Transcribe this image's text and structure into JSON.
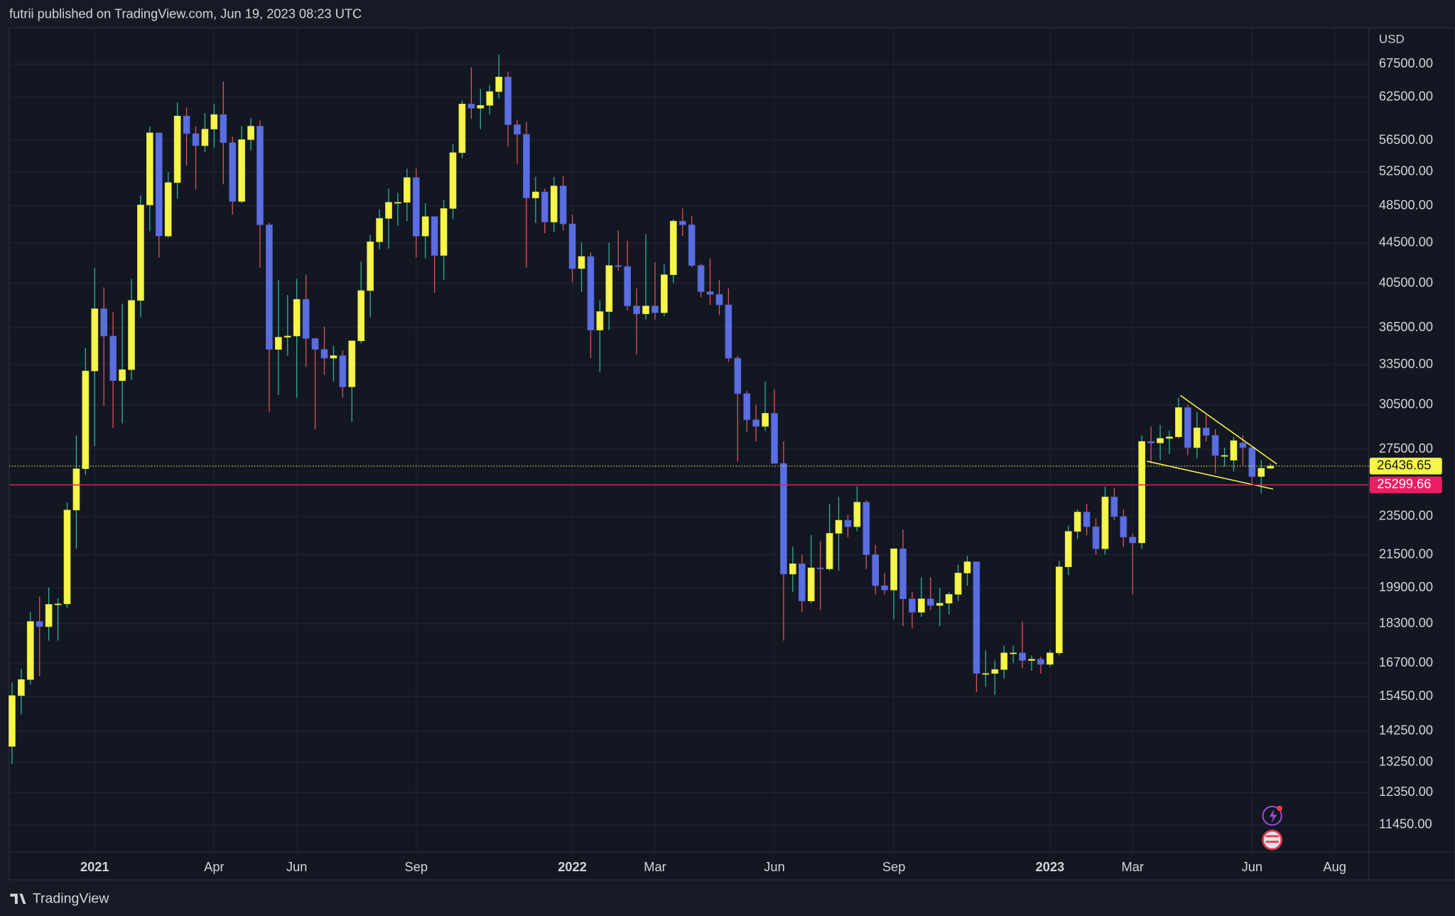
{
  "header": "futrii published on TradingView.com, Jun 19, 2023 08:23 UTC",
  "footer": "TradingView",
  "chart_data": {
    "type": "candlestick",
    "currency": "USD",
    "log_scale": true,
    "grid": true,
    "up_color": "#f5f54a",
    "down_color": "#5a6ee0",
    "up_wick_color": "#2bb394",
    "down_wick_color": "#e0505a",
    "last_price": 26436.65,
    "last_price_color": "#f5f54a",
    "level": 25299.66,
    "level_color": "#e91e63",
    "xlim": [
      -0.3,
      147.7
    ],
    "ylim": [
      10750,
      73450
    ],
    "xticks": [
      {
        "value": 9,
        "label": "2021"
      },
      {
        "value": 22,
        "label": "Apr"
      },
      {
        "value": 31,
        "label": "Jun"
      },
      {
        "value": 44,
        "label": "Sep"
      },
      {
        "value": 61,
        "label": "2022"
      },
      {
        "value": 70,
        "label": "Mar"
      },
      {
        "value": 83,
        "label": "Jun"
      },
      {
        "value": 96,
        "label": "Sep"
      },
      {
        "value": 113,
        "label": "2023"
      },
      {
        "value": 122,
        "label": "Mar"
      },
      {
        "value": 135,
        "label": "Jun"
      },
      {
        "value": 144,
        "label": "Aug"
      }
    ],
    "yticks": [
      {
        "value": 67500,
        "label": "67500.00"
      },
      {
        "value": 62500,
        "label": "62500.00"
      },
      {
        "value": 56500,
        "label": "56500.00"
      },
      {
        "value": 52500,
        "label": "52500.00"
      },
      {
        "value": 48500,
        "label": "48500.00"
      },
      {
        "value": 44500,
        "label": "44500.00"
      },
      {
        "value": 40500,
        "label": "40500.00"
      },
      {
        "value": 36500,
        "label": "36500.00"
      },
      {
        "value": 33500,
        "label": "33500.00"
      },
      {
        "value": 30500,
        "label": "30500.00"
      },
      {
        "value": 27500,
        "label": "27500.00"
      },
      {
        "value": 23500,
        "label": "23500.00"
      },
      {
        "value": 21500,
        "label": "21500.00"
      },
      {
        "value": 19900,
        "label": "19900.00"
      },
      {
        "value": 18300,
        "label": "18300.00"
      },
      {
        "value": 16700,
        "label": "16700.00"
      },
      {
        "value": 15450,
        "label": "15450.00"
      },
      {
        "value": 14250,
        "label": "14250.00"
      },
      {
        "value": 13250,
        "label": "13250.00"
      },
      {
        "value": 12350,
        "label": "12350.00"
      },
      {
        "value": 11450,
        "label": "11450.00"
      }
    ],
    "ohlc": [
      [
        13750,
        15960,
        13200,
        15480
      ],
      [
        15480,
        16480,
        14820,
        16070
      ],
      [
        16070,
        18800,
        15880,
        18400
      ],
      [
        18400,
        19500,
        16200,
        18180
      ],
      [
        18180,
        19920,
        17600,
        19150
      ],
      [
        19150,
        19420,
        17600,
        19170
      ],
      [
        19170,
        24280,
        19000,
        23860
      ],
      [
        23860,
        28400,
        21800,
        26270
      ],
      [
        26270,
        34800,
        25900,
        33000
      ],
      [
        33000,
        41950,
        27700,
        38150
      ],
      [
        38150,
        40100,
        30400,
        35800
      ],
      [
        35800,
        37860,
        28900,
        32260
      ],
      [
        32260,
        38600,
        29200,
        33100
      ],
      [
        33100,
        40900,
        32300,
        38900
      ],
      [
        38900,
        49700,
        37400,
        48600
      ],
      [
        48600,
        58350,
        45700,
        57500
      ],
      [
        57500,
        57500,
        43000,
        45200
      ],
      [
        45200,
        52500,
        45000,
        51200
      ],
      [
        51200,
        61700,
        49300,
        59800
      ],
      [
        59800,
        61000,
        53300,
        57400
      ],
      [
        57400,
        58400,
        50400,
        55800
      ],
      [
        55800,
        60200,
        55000,
        58000
      ],
      [
        58000,
        61500,
        55500,
        60000
      ],
      [
        60000,
        64850,
        51000,
        56200
      ],
      [
        56200,
        57000,
        47500,
        49000
      ],
      [
        49000,
        58400,
        48800,
        56600
      ],
      [
        56600,
        59500,
        55200,
        58400
      ],
      [
        58400,
        59200,
        42000,
        46400
      ],
      [
        46400,
        46600,
        30000,
        34700
      ],
      [
        34700,
        40800,
        31200,
        35700
      ],
      [
        35700,
        39400,
        34200,
        35800
      ],
      [
        35800,
        40900,
        31000,
        39000
      ],
      [
        39000,
        41300,
        33300,
        35600
      ],
      [
        35600,
        35600,
        28800,
        34700
      ],
      [
        34700,
        36600,
        32700,
        34000
      ],
      [
        34000,
        35000,
        32200,
        34200
      ],
      [
        34200,
        34600,
        31000,
        31800
      ],
      [
        31800,
        35400,
        29300,
        35400
      ],
      [
        35400,
        42600,
        35200,
        39800
      ],
      [
        39800,
        45300,
        37400,
        44600
      ],
      [
        44600,
        48100,
        43800,
        47100
      ],
      [
        47100,
        50500,
        43900,
        48900
      ],
      [
        48900,
        50000,
        46300,
        48900
      ],
      [
        48900,
        52900,
        46800,
        51800
      ],
      [
        51800,
        52900,
        43000,
        45200
      ],
      [
        45200,
        48800,
        42900,
        47300
      ],
      [
        47300,
        47300,
        39600,
        43200
      ],
      [
        43200,
        49200,
        40800,
        48200
      ],
      [
        48200,
        56000,
        47000,
        54900
      ],
      [
        54900,
        62000,
        54200,
        61500
      ],
      [
        61500,
        67000,
        59400,
        60900
      ],
      [
        60900,
        63700,
        58000,
        61300
      ],
      [
        61300,
        64300,
        60000,
        63300
      ],
      [
        63300,
        69000,
        62300,
        65500
      ],
      [
        65500,
        66300,
        55700,
        58600
      ],
      [
        58600,
        59300,
        53500,
        57300
      ],
      [
        57300,
        59000,
        42000,
        49400
      ],
      [
        49400,
        51900,
        46600,
        50100
      ],
      [
        50100,
        50500,
        45500,
        46700
      ],
      [
        46700,
        51900,
        45600,
        50800
      ],
      [
        50800,
        52000,
        45800,
        46500
      ],
      [
        46500,
        47500,
        40600,
        41900
      ],
      [
        41900,
        44500,
        39700,
        43100
      ],
      [
        43100,
        43500,
        34000,
        36300
      ],
      [
        36300,
        38900,
        32900,
        37900
      ],
      [
        37900,
        44500,
        36300,
        42200
      ],
      [
        42200,
        45800,
        41700,
        42100
      ],
      [
        42100,
        44700,
        38000,
        38400
      ],
      [
        38400,
        40000,
        34300,
        37700
      ],
      [
        37700,
        45400,
        37200,
        38400
      ],
      [
        38400,
        42500,
        37200,
        37800
      ],
      [
        37800,
        42300,
        37500,
        41300
      ],
      [
        41300,
        47000,
        40500,
        46800
      ],
      [
        46800,
        48200,
        45200,
        46400
      ],
      [
        46400,
        47400,
        42000,
        42200
      ],
      [
        42200,
        42400,
        39200,
        39700
      ],
      [
        39700,
        42900,
        38500,
        39450
      ],
      [
        39450,
        40800,
        37600,
        38500
      ],
      [
        38500,
        40000,
        33700,
        34000
      ],
      [
        34000,
        34200,
        26700,
        31300
      ],
      [
        31300,
        31500,
        28600,
        29450
      ],
      [
        29450,
        30500,
        28000,
        29000
      ],
      [
        29000,
        32200,
        28700,
        29900
      ],
      [
        29900,
        31600,
        26600,
        26600
      ],
      [
        26600,
        28000,
        17600,
        20550
      ],
      [
        20550,
        21900,
        19700,
        21050
      ],
      [
        21050,
        21500,
        18800,
        19300
      ],
      [
        19300,
        22500,
        19200,
        20850
      ],
      [
        20850,
        22200,
        18900,
        20800
      ],
      [
        20800,
        24200,
        20700,
        22600
      ],
      [
        22600,
        24600,
        20700,
        23300
      ],
      [
        23300,
        23600,
        22400,
        22950
      ],
      [
        22950,
        25200,
        22700,
        24300
      ],
      [
        24300,
        24400,
        20800,
        21500
      ],
      [
        21500,
        22000,
        19600,
        20000
      ],
      [
        20000,
        20600,
        19600,
        19800
      ],
      [
        19800,
        21800,
        18500,
        21800
      ],
      [
        21800,
        22800,
        18200,
        19400
      ],
      [
        19400,
        19700,
        18100,
        18800
      ],
      [
        18800,
        20400,
        18600,
        19400
      ],
      [
        19400,
        20400,
        18900,
        19100
      ],
      [
        19100,
        19900,
        18200,
        19200
      ],
      [
        19200,
        19700,
        18700,
        19600
      ],
      [
        19600,
        21000,
        19300,
        20600
      ],
      [
        20600,
        21450,
        20000,
        21150
      ],
      [
        21150,
        21150,
        15600,
        16300
      ],
      [
        16300,
        17200,
        15800,
        16300
      ],
      [
        16300,
        16800,
        15500,
        16450
      ],
      [
        16450,
        17400,
        16100,
        17100
      ],
      [
        17100,
        17400,
        16700,
        17100
      ],
      [
        17100,
        18400,
        16500,
        16800
      ],
      [
        16800,
        17000,
        16400,
        16850
      ],
      [
        16850,
        16950,
        16300,
        16650
      ],
      [
        16650,
        17200,
        16550,
        17100
      ],
      [
        17100,
        21200,
        17000,
        20900
      ],
      [
        20900,
        23000,
        20500,
        22700
      ],
      [
        22700,
        23900,
        22300,
        23750
      ],
      [
        23750,
        24200,
        22500,
        22950
      ],
      [
        22950,
        23400,
        21500,
        21800
      ],
      [
        21800,
        25200,
        21500,
        24600
      ],
      [
        24600,
        25100,
        23300,
        23500
      ],
      [
        23500,
        23900,
        21900,
        22400
      ],
      [
        22400,
        22600,
        19600,
        22100
      ],
      [
        22100,
        28400,
        21800,
        28000
      ],
      [
        28000,
        29000,
        26600,
        27900
      ],
      [
        27900,
        29100,
        26800,
        28200
      ],
      [
        28200,
        28700,
        27200,
        28300
      ],
      [
        28300,
        31000,
        28200,
        30300
      ],
      [
        30300,
        30500,
        27100,
        27600
      ],
      [
        27600,
        30000,
        26900,
        28900
      ],
      [
        28900,
        29800,
        28000,
        28400
      ],
      [
        28400,
        28800,
        26000,
        27100
      ],
      [
        27100,
        27600,
        26400,
        27100
      ],
      [
        26800,
        28300,
        26100,
        28050
      ],
      [
        27900,
        28400,
        26500,
        27600
      ],
      [
        27600,
        27700,
        25400,
        25800
      ],
      [
        25800,
        26800,
        24800,
        26300
      ],
      [
        26300,
        26600,
        26300,
        26436.65
      ]
    ]
  }
}
